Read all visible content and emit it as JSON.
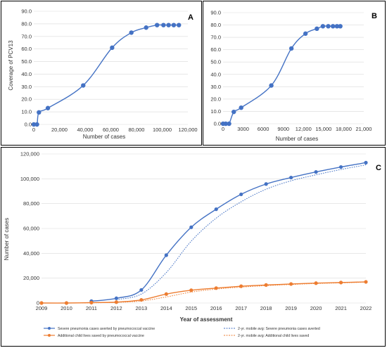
{
  "chart_data": [
    {
      "panel": "A",
      "type": "line",
      "xlabel": "Number of cases",
      "ylabel": "Coverage of PCV13",
      "xlim": [
        0,
        120000
      ],
      "ylim": [
        0,
        90
      ],
      "xticks": [
        "0",
        "20,000",
        "40,000",
        "60,000",
        "80,000",
        "100,000",
        "120,000"
      ],
      "yticks": [
        "0.0",
        "10.0",
        "20.0",
        "30.0",
        "40.0",
        "50.0",
        "60.0",
        "70.0",
        "80.0",
        "90.0"
      ],
      "series": [
        {
          "x": [
            0,
            2500,
            4000,
            11000,
            38500,
            61000,
            76000,
            87500,
            96000,
            101000,
            105000,
            109000,
            113000
          ],
          "y": [
            0,
            0,
            9.6,
            13,
            31,
            61,
            73,
            77,
            79,
            79,
            79,
            79,
            79
          ]
        }
      ],
      "grid": "horizontal",
      "color": "#4472C4"
    },
    {
      "panel": "B",
      "type": "line",
      "xlabel": "Number of cases",
      "xlim": [
        0,
        21000
      ],
      "ylim": [
        0,
        90
      ],
      "xticks": [
        "0",
        "3000",
        "6000",
        "9000",
        "12,000",
        "15,000",
        "18,000",
        "21,000"
      ],
      "yticks": [
        "0.0",
        "10.0",
        "20.0",
        "30.0",
        "40.0",
        "50.0",
        "60.0",
        "70.0",
        "80.0",
        "90.0"
      ],
      "series": [
        {
          "x": [
            0,
            400,
            900,
            1600,
            2700,
            7200,
            10200,
            12300,
            14000,
            14900,
            15700,
            16400,
            17000,
            17500
          ],
          "y": [
            0,
            0,
            0,
            9.6,
            13,
            31,
            61,
            73,
            77,
            79,
            79,
            79,
            79,
            79
          ]
        }
      ],
      "grid": "horizontal",
      "color": "#4472C4"
    },
    {
      "panel": "C",
      "type": "line",
      "xlabel": "Year of assessment",
      "ylabel": "Number of cases",
      "xlim": [
        2009,
        2022
      ],
      "ylim": [
        0,
        120000
      ],
      "categories": [
        "2009",
        "2010",
        "2011",
        "2012",
        "2013",
        "2014",
        "2015",
        "2016",
        "2017",
        "2018",
        "2019",
        "2020",
        "2021",
        "2022"
      ],
      "yticks": [
        "0",
        "20,000",
        "40,000",
        "60,000",
        "80,000",
        "100,000",
        "120,000"
      ],
      "series": [
        {
          "name": "Severe pneumonia cases averted by pneumococcal vaccine",
          "x": [
            2011,
            2012,
            2013,
            2014,
            2015,
            2016,
            2017,
            2018,
            2019,
            2020,
            2021,
            2022
          ],
          "values": [
            1500,
            3800,
            10500,
            38500,
            61000,
            75500,
            87500,
            95800,
            101000,
            105500,
            109500,
            113000
          ],
          "color": "#4472C4",
          "style": "solid-markers"
        },
        {
          "name": "Additional child lives saved by pneumococcal vaccine",
          "x": [
            2009,
            2010,
            2011,
            2012,
            2013,
            2014,
            2015,
            2016,
            2017,
            2018,
            2019,
            2020,
            2021,
            2022
          ],
          "values": [
            0,
            0,
            300,
            700,
            2500,
            7200,
            10300,
            12000,
            13500,
            14500,
            15300,
            16000,
            16500,
            17000
          ],
          "color": "#ED7D31",
          "style": "solid-markers"
        },
        {
          "name": "2-yr. mobile avg: Severe pneumonia cases averted",
          "x": [
            2012,
            2013,
            2014,
            2015,
            2016,
            2017,
            2018,
            2019,
            2020,
            2021,
            2022
          ],
          "values": [
            2700,
            7200,
            24500,
            49800,
            68300,
            81500,
            91600,
            98400,
            103200,
            107500,
            111200
          ],
          "color": "#4472C4",
          "style": "dotted"
        },
        {
          "name": "2-yr. mobile avg: Additional child lives saved",
          "x": [
            2010,
            2011,
            2012,
            2013,
            2014,
            2015,
            2016,
            2017,
            2018,
            2019,
            2020,
            2021,
            2022
          ],
          "values": [
            0,
            150,
            500,
            1600,
            4900,
            8800,
            11200,
            12800,
            14000,
            14900,
            15700,
            16200,
            16800
          ],
          "color": "#ED7D31",
          "style": "dotted"
        }
      ],
      "grid": "horizontal",
      "legend": "bottom"
    }
  ]
}
